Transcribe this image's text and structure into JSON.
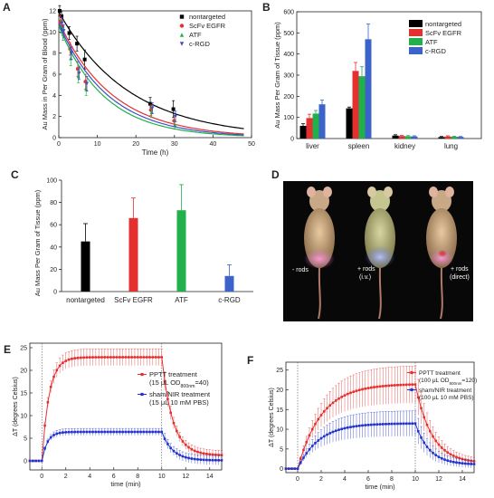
{
  "chart_data": [
    {
      "panel": "A",
      "type": "scatter",
      "xlabel": "Time (h)",
      "ylabel": "Au Mass in Per Gram of Blood (ppm)",
      "xlim": [
        0,
        50
      ],
      "ylim": [
        0,
        12
      ],
      "xticks": [
        "0",
        "10",
        "20",
        "30",
        "40",
        "50"
      ],
      "yticks": [
        "0",
        "2",
        "4",
        "6",
        "8",
        "10",
        "12"
      ],
      "legend_position": "top-right",
      "series": [
        {
          "name": "nontargeted",
          "color": "#000000",
          "marker": "square",
          "x": [
            0.5,
            1,
            3,
            5,
            7,
            24,
            30
          ],
          "y": [
            12.0,
            11.5,
            9.9,
            8.9,
            7.4,
            3.2,
            2.7
          ],
          "err": [
            0.5,
            0.5,
            0.6,
            0.7,
            0.9,
            0.6,
            0.8
          ],
          "fit": {
            "a": 11.9,
            "k": 0.055
          }
        },
        {
          "name": "ScFv EGFR",
          "color": "#e53030",
          "marker": "circle",
          "x": [
            0.5,
            1,
            3,
            5,
            7,
            24,
            30
          ],
          "y": [
            11.0,
            10.5,
            8.4,
            6.5,
            5.3,
            2.6,
            1.6
          ],
          "err": [
            0.6,
            0.6,
            0.6,
            0.7,
            0.7,
            0.5,
            0.5
          ],
          "fit": {
            "a": 11.0,
            "k": 0.072
          }
        },
        {
          "name": "ATF",
          "color": "#22b04a",
          "marker": "triangle",
          "x": [
            0.5,
            1,
            3,
            5,
            7,
            24,
            30
          ],
          "y": [
            10.5,
            9.8,
            7.5,
            5.8,
            4.6,
            2.4,
            1.2
          ],
          "err": [
            0.6,
            0.6,
            0.7,
            0.6,
            0.6,
            0.5,
            0.4
          ],
          "fit": {
            "a": 10.6,
            "k": 0.085
          }
        },
        {
          "name": "c-RGD",
          "color": "#3b4fc4",
          "marker": "triangle-down",
          "x": [
            0.5,
            1,
            3,
            5,
            7,
            24,
            30
          ],
          "y": [
            10.8,
            10.1,
            8.0,
            6.1,
            5.1,
            2.8,
            2.0
          ],
          "err": [
            0.6,
            0.6,
            0.6,
            0.6,
            0.7,
            0.5,
            0.5
          ],
          "fit": {
            "a": 10.8,
            "k": 0.078
          }
        }
      ]
    },
    {
      "panel": "B",
      "type": "bar",
      "ylabel": "Au Mass Per Gram of Tissue (ppm)",
      "categories": [
        "liver",
        "spleen",
        "kidney",
        "lung"
      ],
      "ylim": [
        0,
        600
      ],
      "yticks": [
        "0",
        "100",
        "200",
        "300",
        "400",
        "500",
        "600"
      ],
      "legend_position": "top-right",
      "series": [
        {
          "name": "nontargeted",
          "color": "#000000",
          "values": [
            60,
            143,
            14,
            7
          ],
          "err": [
            10,
            6,
            4,
            3
          ]
        },
        {
          "name": "ScFv EGFR",
          "color": "#e53030",
          "values": [
            97,
            320,
            12,
            10
          ],
          "err": [
            18,
            40,
            3,
            3
          ]
        },
        {
          "name": "ATF",
          "color": "#22b04a",
          "values": [
            118,
            295,
            11,
            9
          ],
          "err": [
            15,
            45,
            3,
            2
          ]
        },
        {
          "name": "c-RGD",
          "color": "#3b63c9",
          "values": [
            162,
            470,
            10,
            8
          ],
          "err": [
            20,
            72,
            3,
            2
          ]
        }
      ]
    },
    {
      "panel": "C",
      "type": "bar",
      "ylabel": "Au Mass Per Gram of Tissue (ppm)",
      "categories": [
        "nontargeted",
        "ScFv EGFR",
        "ATF",
        "c-RGD"
      ],
      "ylim": [
        0,
        100
      ],
      "yticks": [
        "0",
        "20",
        "40",
        "60",
        "80",
        "100"
      ],
      "values": [
        45,
        66,
        73,
        14
      ],
      "err": [
        16,
        18,
        23,
        10
      ],
      "colors": [
        "#000000",
        "#e53030",
        "#22b04a",
        "#3b63c9"
      ]
    },
    {
      "panel": "E",
      "type": "line",
      "xlabel": "time (min)",
      "ylabel": "ΔT (degrees Celsius)",
      "xlim": [
        -1,
        15
      ],
      "ylim": [
        -2,
        26
      ],
      "xticks": [
        "0",
        "2",
        "4",
        "6",
        "8",
        "10",
        "12",
        "14"
      ],
      "yticks": [
        "0",
        "5",
        "10",
        "15",
        "20",
        "25"
      ],
      "series": [
        {
          "name": "PPTT treatment",
          "detail_prefix": "(15 μL OD",
          "detail_sub": "800nm",
          "detail_suffix": "=40)",
          "color": "#e53030",
          "marker": "square",
          "params": {
            "peak": 22.9,
            "tau": 0.6,
            "cool": 0.9,
            "end": 1.2,
            "err_frac": 0.08
          }
        },
        {
          "name": "sham/NIR treatment",
          "detail_prefix": "(15 μL 10 mM PBS)",
          "detail_sub": "",
          "detail_suffix": "",
          "color": "#2233cc",
          "marker": "square",
          "params": {
            "peak": 6.4,
            "tau": 0.45,
            "cool": 0.9,
            "end": 0.1,
            "err_frac": 0.12
          }
        }
      ]
    },
    {
      "panel": "F",
      "type": "line",
      "xlabel": "time (min)",
      "ylabel": "ΔT (degrees Celsius)",
      "xlim": [
        -1,
        15
      ],
      "ylim": [
        -1,
        27
      ],
      "xticks": [
        "0",
        "2",
        "4",
        "6",
        "8",
        "10",
        "12",
        "14"
      ],
      "yticks": [
        "0",
        "5",
        "10",
        "15",
        "20",
        "25"
      ],
      "series": [
        {
          "name": "PPTT treatment",
          "detail_prefix": "(100 μL OD",
          "detail_sub": "800nm",
          "detail_suffix": "=120)",
          "color": "#e53030",
          "marker": "square",
          "params": {
            "peak": 21.5,
            "tau": 2.0,
            "cool": 1.4,
            "end": 1.3,
            "err_frac": 0.22
          }
        },
        {
          "name": "sham/NIR treatment",
          "detail_prefix": "(100 μL 10 mM PBS)",
          "detail_sub": "",
          "detail_suffix": "",
          "color": "#2233cc",
          "marker": "square",
          "params": {
            "peak": 11.5,
            "tau": 1.8,
            "cool": 1.2,
            "end": 1.0,
            "err_frac": 0.28
          }
        }
      ]
    }
  ],
  "panels": {
    "a_letter": "A",
    "b_letter": "B",
    "c_letter": "C",
    "d_letter": "D",
    "e_letter": "E",
    "f_letter": "F"
  },
  "photo": {
    "labels": [
      {
        "lines": [
          "- rods"
        ]
      },
      {
        "lines": [
          "+ rods",
          "(i.v.)"
        ]
      },
      {
        "lines": [
          "+ rods",
          "(direct)"
        ]
      }
    ]
  }
}
